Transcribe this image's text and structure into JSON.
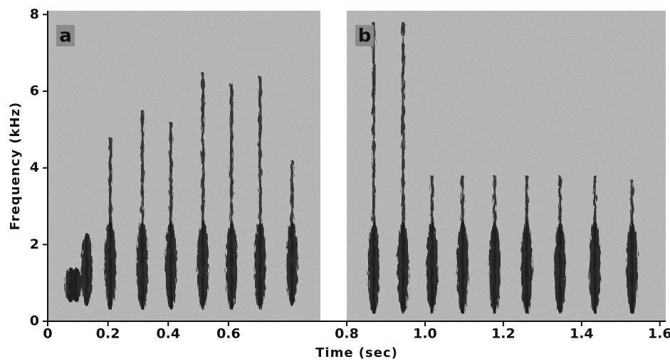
{
  "chart_data": {
    "type": "spectrogram",
    "xlabel": "Time (sec)",
    "ylabel": "Frequency (kHz)",
    "ylim": [
      0,
      8.1
    ],
    "yticks": [
      0,
      2,
      4,
      6,
      8
    ],
    "color": "#1c1c1c",
    "background": "#c6c6c6",
    "panels": [
      {
        "label": "a",
        "xlim": [
          0,
          0.905
        ],
        "xticks": [
          0,
          0.2,
          0.4,
          0.6
        ],
        "syllables": {
          "time": [
            0.076,
            0.095,
            0.13,
            0.208,
            0.314,
            0.409,
            0.515,
            0.61,
            0.705,
            0.811
          ],
          "fmin": [
            0.5,
            0.5,
            0.4,
            0.3,
            0.3,
            0.3,
            0.3,
            0.3,
            0.3,
            0.4
          ],
          "fmax": [
            1.4,
            1.4,
            2.3,
            4.8,
            5.5,
            5.2,
            6.5,
            6.2,
            6.4,
            4.2
          ]
        }
      },
      {
        "label": "b",
        "xlim": [
          0.8,
          1.615
        ],
        "xticks": [
          0.8,
          {
            "value": 1,
            "label": "1.0"
          },
          1.2,
          1.4,
          1.6
        ],
        "syllables": {
          "time": [
            0.869,
            0.944,
            1.018,
            1.096,
            1.178,
            1.26,
            1.345,
            1.434,
            1.529
          ],
          "fmin": [
            0.2,
            0.2,
            0.2,
            0.2,
            0.2,
            0.2,
            0.2,
            0.2,
            0.2
          ],
          "fmax": [
            7.8,
            7.8,
            3.8,
            3.8,
            3.8,
            3.8,
            3.8,
            3.8,
            3.7
          ]
        }
      }
    ]
  }
}
